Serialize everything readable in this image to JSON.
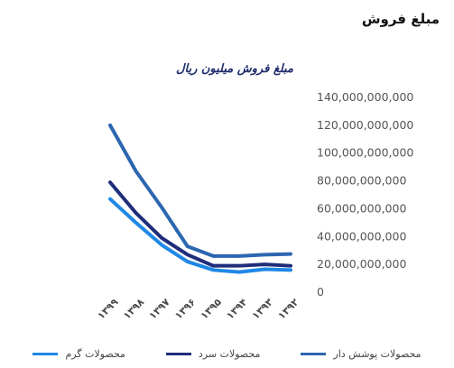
{
  "page": {
    "heading": "مبلغ فروش"
  },
  "chart_data": {
    "type": "line",
    "title": "مبلغ فروش میلیون ریال",
    "categories": [
      "۱۳۹۹",
      "۱۳۹۸",
      "۱۳۹۷",
      "۱۳۹۶",
      "۱۳۹۵",
      "۱۳۹۴",
      "۱۳۹۳",
      "۱۳۹۲"
    ],
    "y_tick_labels": [
      "0",
      "20,000,000,000",
      "40,000,000,000",
      "60,000,000,000",
      "80,000,000,000",
      "100,000,000,000",
      "120,000,000,000",
      "140,000,000,000"
    ],
    "ylim": [
      0,
      140000000000
    ],
    "y_axis_side": "right",
    "grid": false,
    "legend_position": "bottom",
    "series": [
      {
        "name": "محصولات گرم",
        "color": "#1e88e5",
        "values": [
          67000000000,
          50000000000,
          34000000000,
          22000000000,
          16000000000,
          14500000000,
          16500000000,
          16000000000
        ]
      },
      {
        "name": "محصولات سرد",
        "color": "#1f2d7a",
        "values": [
          79000000000,
          57000000000,
          39000000000,
          27000000000,
          19000000000,
          19000000000,
          20000000000,
          19000000000
        ]
      },
      {
        "name": "محصولات پوشش دار",
        "color": "#2c66b0",
        "values": [
          120000000000,
          87000000000,
          61000000000,
          33000000000,
          26000000000,
          26000000000,
          27000000000,
          27500000000
        ]
      }
    ]
  }
}
